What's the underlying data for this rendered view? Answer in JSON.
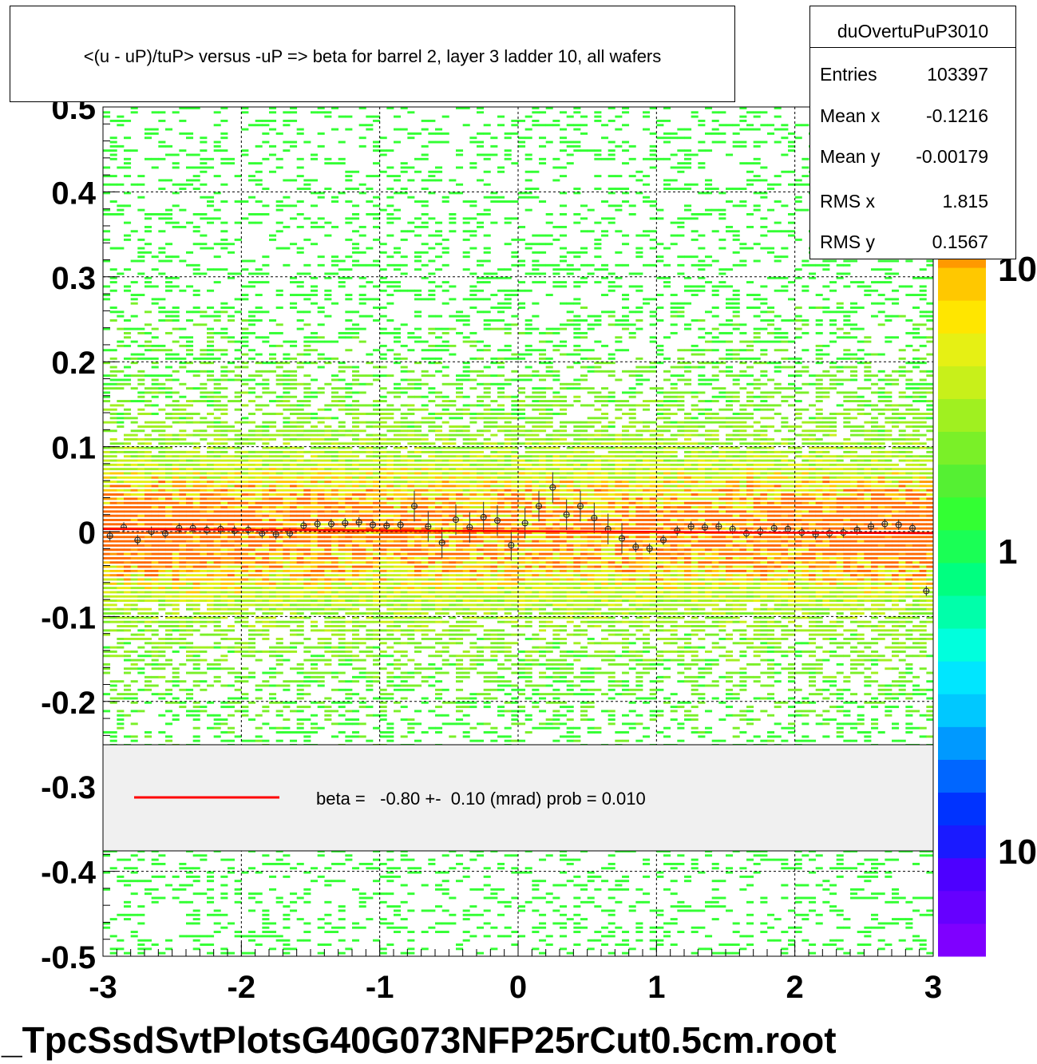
{
  "title": "<(u - uP)/tuP> versus  -uP => beta for barrel 2, layer 3 ladder 10, all wafers",
  "stats": {
    "name": "duOvertuPuP3010",
    "rows": [
      {
        "label": "Entries",
        "value": "103397"
      },
      {
        "label": "Mean x",
        "value": "-0.1216"
      },
      {
        "label": "Mean y",
        "value": "-0.00179"
      },
      {
        "label": "RMS x",
        "value": "1.815"
      },
      {
        "label": "RMS y",
        "value": "0.1567"
      }
    ]
  },
  "legend": {
    "text": "beta =   -0.80 +-  0.10 (mrad) prob = 0.010",
    "line_color": "#ff0000",
    "box_color": "#f0f0f0"
  },
  "footer": "_TpcSsdSvtPlotsG40G073NFP25rCut0.5cm.root",
  "chart_data": {
    "type": "heatmap",
    "title": "<(u - uP)/tuP> versus  -uP => beta for barrel 2, layer 3 ladder 10, all wafers",
    "xlim": [
      -3,
      3
    ],
    "ylim": [
      -0.5,
      0.5
    ],
    "x_ticks": [
      "-3",
      "-2",
      "-1",
      "0",
      "1",
      "2",
      "3"
    ],
    "y_ticks": [
      "-0.5",
      "-0.4",
      "-0.3",
      "-0.2",
      "-0.1",
      "0",
      "0.1",
      "0.2",
      "0.3",
      "0.4",
      "0.5"
    ],
    "grid": true,
    "colorbar": {
      "scale": "log",
      "labels": [
        "10",
        "1",
        "10"
      ],
      "colors": [
        "#7f00ff",
        "#6600ff",
        "#4d00ff",
        "#1a1aff",
        "#0033ff",
        "#0066ff",
        "#0099ff",
        "#00c8ff",
        "#00e6ff",
        "#00ffdd",
        "#00ffaa",
        "#00ff80",
        "#1aff55",
        "#33ff33",
        "#55f033",
        "#7af028",
        "#a0f020",
        "#c8f01a",
        "#e6f014",
        "#ffe600",
        "#ffc800",
        "#ff9900"
      ]
    },
    "profile_points": [
      {
        "x": -2.95,
        "y": -0.005
      },
      {
        "x": -2.85,
        "y": 0.005
      },
      {
        "x": -2.75,
        "y": -0.01
      },
      {
        "x": -2.65,
        "y": 0.0
      },
      {
        "x": -2.55,
        "y": -0.002
      },
      {
        "x": -2.45,
        "y": 0.004
      },
      {
        "x": -2.35,
        "y": 0.004
      },
      {
        "x": -2.25,
        "y": 0.002
      },
      {
        "x": -2.15,
        "y": 0.003
      },
      {
        "x": -2.05,
        "y": 0.001
      },
      {
        "x": -1.95,
        "y": 0.002
      },
      {
        "x": -1.85,
        "y": -0.002
      },
      {
        "x": -1.75,
        "y": -0.003
      },
      {
        "x": -1.65,
        "y": -0.002
      },
      {
        "x": -1.55,
        "y": 0.007
      },
      {
        "x": -1.45,
        "y": 0.009
      },
      {
        "x": -1.35,
        "y": 0.009
      },
      {
        "x": -1.25,
        "y": 0.01
      },
      {
        "x": -1.15,
        "y": 0.011
      },
      {
        "x": -1.05,
        "y": 0.008
      },
      {
        "x": -0.95,
        "y": 0.007
      },
      {
        "x": -0.85,
        "y": 0.008
      },
      {
        "x": -0.75,
        "y": 0.03
      },
      {
        "x": -0.65,
        "y": 0.006
      },
      {
        "x": -0.55,
        "y": -0.013
      },
      {
        "x": -0.45,
        "y": 0.014
      },
      {
        "x": -0.35,
        "y": 0.005
      },
      {
        "x": -0.25,
        "y": 0.017
      },
      {
        "x": -0.15,
        "y": 0.013
      },
      {
        "x": -0.05,
        "y": -0.016
      },
      {
        "x": 0.05,
        "y": 0.01
      },
      {
        "x": 0.15,
        "y": 0.03
      },
      {
        "x": 0.25,
        "y": 0.052
      },
      {
        "x": 0.35,
        "y": 0.02
      },
      {
        "x": 0.45,
        "y": 0.03
      },
      {
        "x": 0.55,
        "y": 0.016
      },
      {
        "x": 0.65,
        "y": 0.003
      },
      {
        "x": 0.75,
        "y": -0.008
      },
      {
        "x": 0.85,
        "y": -0.018
      },
      {
        "x": 0.95,
        "y": -0.02
      },
      {
        "x": 1.05,
        "y": -0.01
      },
      {
        "x": 1.15,
        "y": 0.001
      },
      {
        "x": 1.25,
        "y": 0.006
      },
      {
        "x": 1.35,
        "y": 0.005
      },
      {
        "x": 1.45,
        "y": 0.006
      },
      {
        "x": 1.55,
        "y": 0.003
      },
      {
        "x": 1.65,
        "y": -0.002
      },
      {
        "x": 1.75,
        "y": 0.0
      },
      {
        "x": 1.85,
        "y": 0.004
      },
      {
        "x": 1.95,
        "y": 0.003
      },
      {
        "x": 2.05,
        "y": -0.001
      },
      {
        "x": 2.15,
        "y": -0.003
      },
      {
        "x": 2.25,
        "y": -0.002
      },
      {
        "x": 2.35,
        "y": -0.001
      },
      {
        "x": 2.45,
        "y": 0.002
      },
      {
        "x": 2.55,
        "y": 0.006
      },
      {
        "x": 2.65,
        "y": 0.009
      },
      {
        "x": 2.75,
        "y": 0.008
      },
      {
        "x": 2.85,
        "y": 0.004
      },
      {
        "x": 2.95,
        "y": -0.07
      }
    ],
    "fit_line": {
      "x": [
        -3,
        3
      ],
      "y": [
        0.003,
        -0.002
      ]
    }
  }
}
